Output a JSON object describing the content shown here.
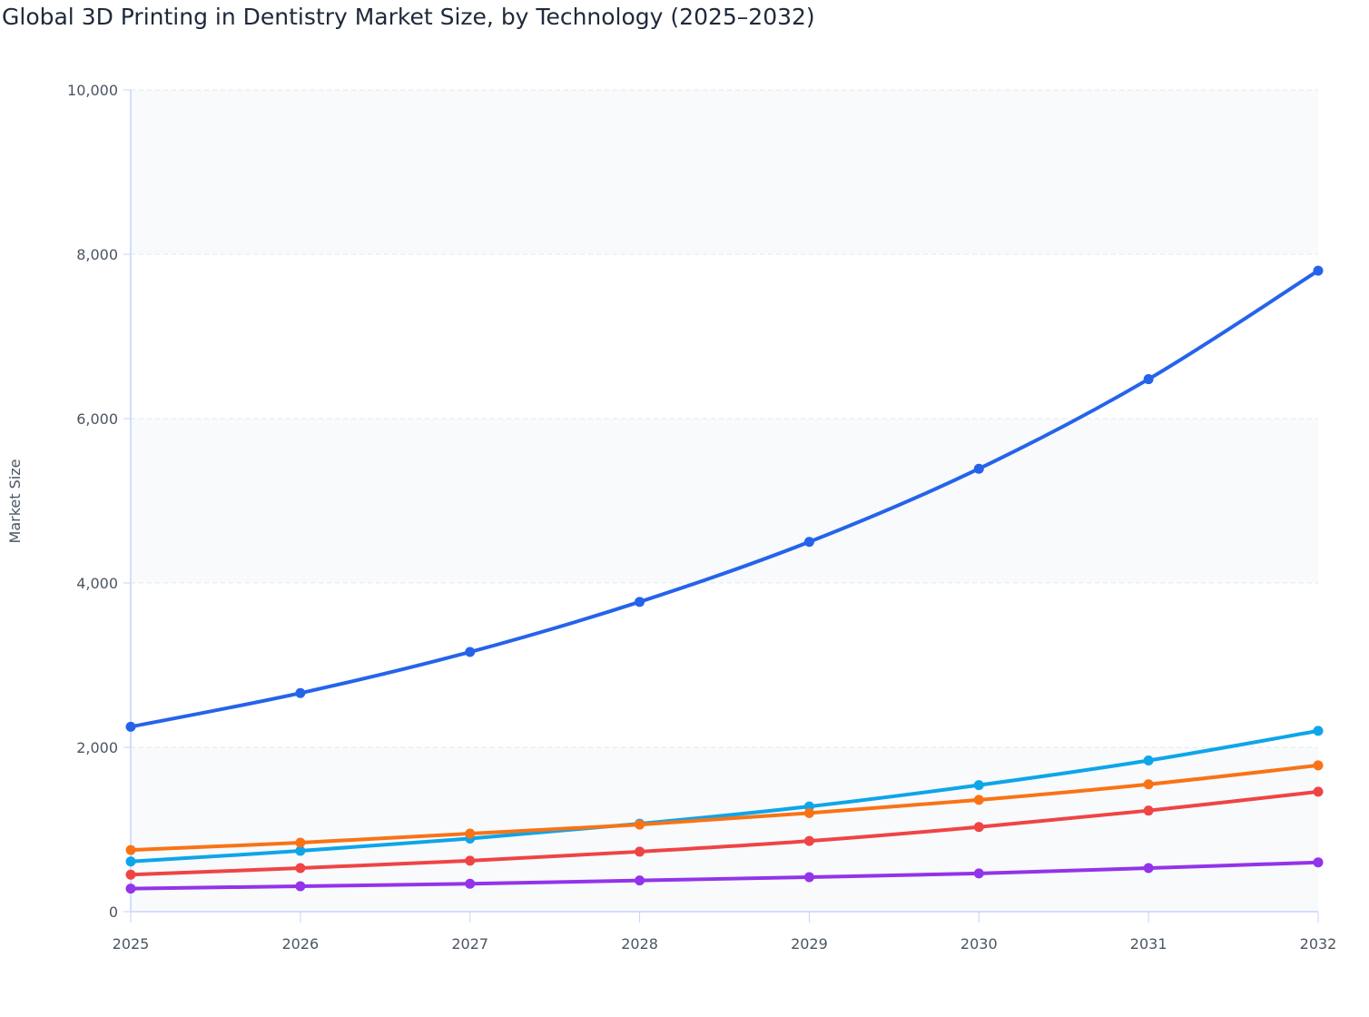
{
  "chart_data": {
    "type": "line",
    "title": "Global 3D Printing in Dentistry Market Size, by Technology (2025–2032)",
    "xlabel": "",
    "ylabel": "Market Size",
    "x": [
      "2025",
      "2026",
      "2027",
      "2028",
      "2029",
      "2030",
      "2031",
      "2032"
    ],
    "ylim": [
      0,
      10000
    ],
    "yticks": [
      0,
      2000,
      4000,
      6000,
      8000,
      10000
    ],
    "ytick_labels": [
      "0",
      "2,000",
      "4,000",
      "6,000",
      "8,000",
      "10,000"
    ],
    "grid": true,
    "legend": "none",
    "series": [
      {
        "color": "#2563eb",
        "values": [
          2250,
          2660,
          3160,
          3770,
          4500,
          5390,
          6480,
          7800
        ]
      },
      {
        "color": "#0ea5e9",
        "values": [
          610,
          740,
          890,
          1070,
          1280,
          1540,
          1840,
          2200
        ]
      },
      {
        "color": "#f97316",
        "values": [
          750,
          840,
          950,
          1060,
          1200,
          1360,
          1550,
          1780
        ]
      },
      {
        "color": "#ef4444",
        "values": [
          450,
          530,
          620,
          730,
          860,
          1030,
          1230,
          1460
        ]
      },
      {
        "color": "#9333ea",
        "values": [
          280,
          310,
          340,
          380,
          420,
          465,
          530,
          600
        ]
      }
    ]
  }
}
